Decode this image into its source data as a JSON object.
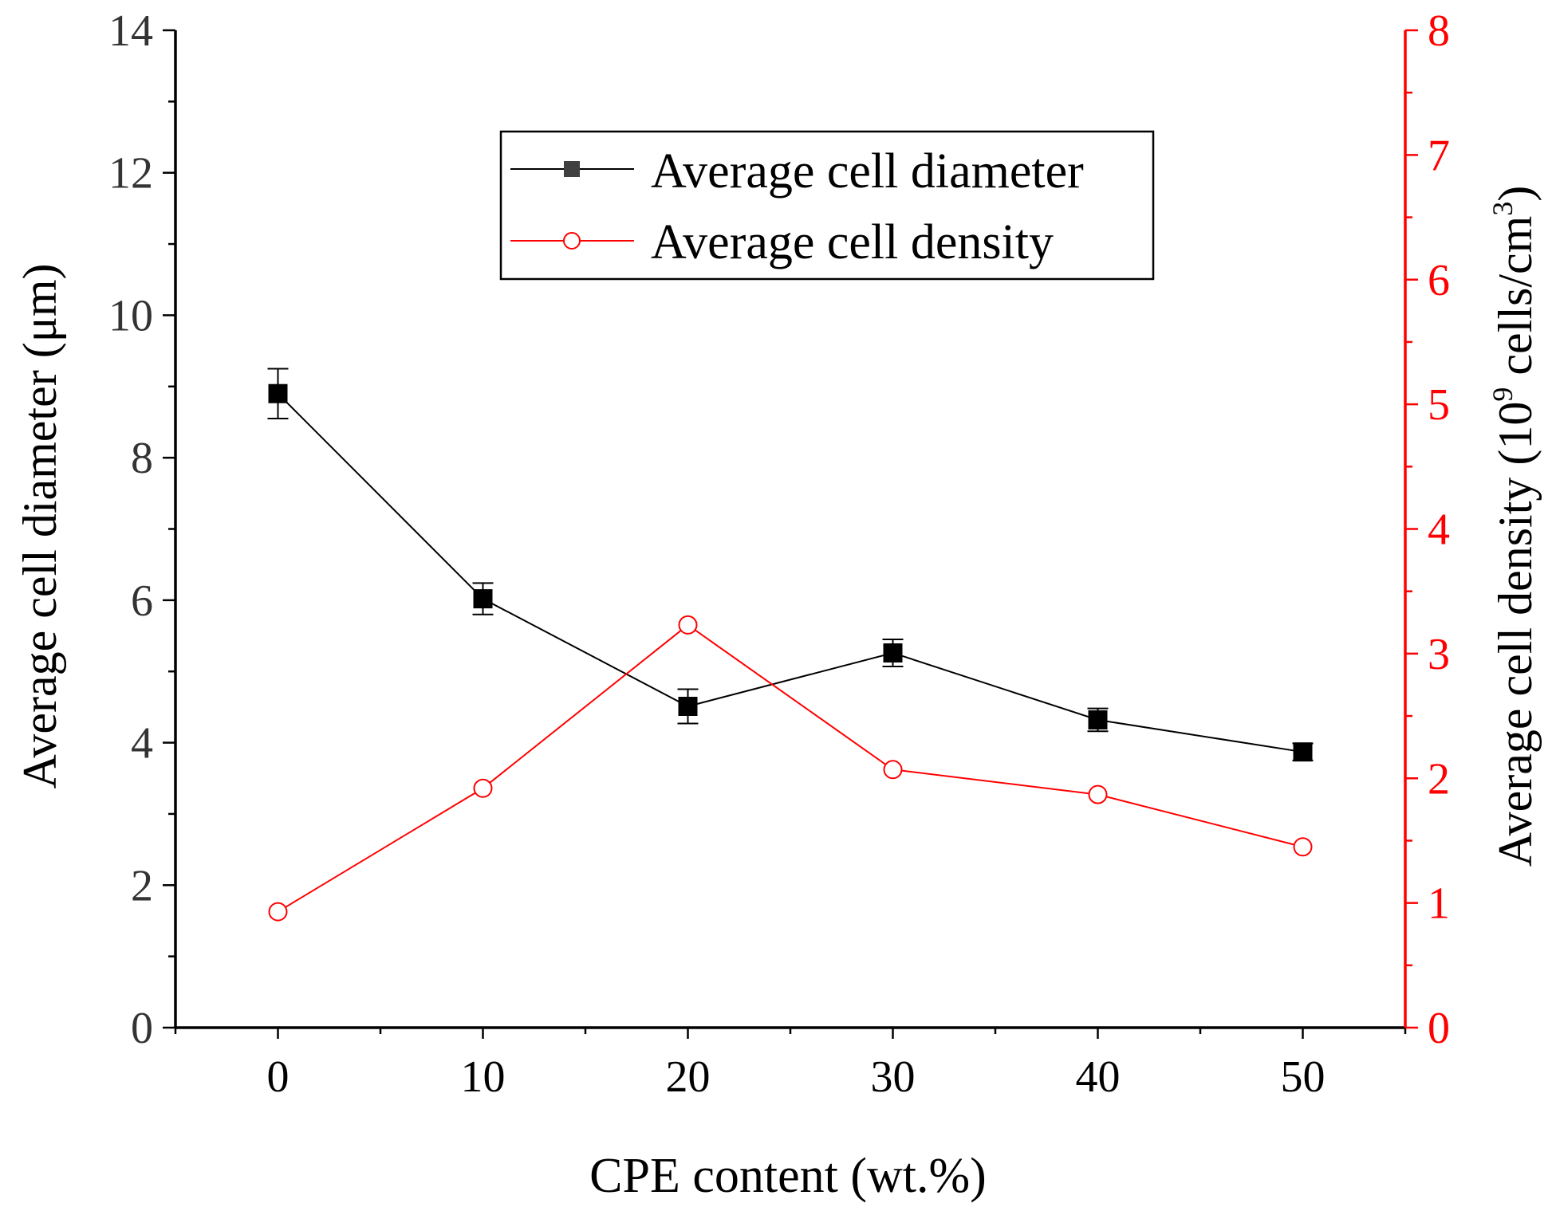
{
  "chart_data": {
    "type": "line",
    "title": "",
    "xlabel": "CPE content (wt.%)",
    "ylabel_left": "Average cell diameter (μm)",
    "ylabel_right_main": "Average cell density (10",
    "ylabel_right_exp1": "9",
    "ylabel_right_mid": " cells/cm",
    "ylabel_right_exp2": "3",
    "ylabel_right_end": ")",
    "xlim": [
      -5,
      55
    ],
    "ylim_left": [
      0,
      14
    ],
    "ylim_right": [
      0,
      8
    ],
    "x_ticks": [
      0,
      10,
      20,
      30,
      40,
      50
    ],
    "x_tick_labels": [
      "0",
      "10",
      "20",
      "30",
      "40",
      "50"
    ],
    "y_left_ticks": [
      0,
      2,
      4,
      6,
      8,
      10,
      12,
      14
    ],
    "y_left_tick_labels": [
      "0",
      "2",
      "4",
      "6",
      "8",
      "10",
      "12",
      "14"
    ],
    "y_right_ticks": [
      0,
      1,
      2,
      3,
      4,
      5,
      6,
      7,
      8
    ],
    "y_right_tick_labels": [
      "0",
      "1",
      "2",
      "3",
      "4",
      "5",
      "6",
      "7",
      "8"
    ],
    "legend_position": "top-center",
    "series": [
      {
        "name": "Average cell diameter",
        "axis": "left",
        "color": "#000000",
        "marker": "filled-square",
        "x": [
          0,
          10,
          20,
          30,
          40,
          50
        ],
        "values": [
          8.9,
          6.02,
          4.51,
          5.26,
          4.32,
          3.87
        ],
        "errors": [
          0.35,
          0.22,
          0.24,
          0.19,
          0.16,
          0.12
        ]
      },
      {
        "name": "Average cell density",
        "axis": "right",
        "color": "#ff0000",
        "marker": "open-circle",
        "x": [
          0,
          10,
          20,
          30,
          40,
          50
        ],
        "values": [
          0.93,
          1.92,
          3.23,
          2.07,
          1.87,
          1.45
        ]
      }
    ]
  },
  "colors": {
    "axis_left": "#000000",
    "axis_right": "#ff0000",
    "left_tick_label": "#333333"
  }
}
